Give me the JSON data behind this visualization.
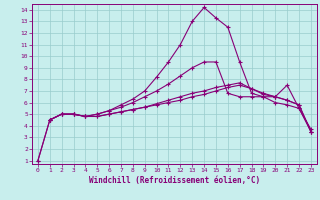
{
  "xlabel": "Windchill (Refroidissement éolien,°C)",
  "xlim": [
    -0.5,
    23.5
  ],
  "ylim": [
    0.7,
    14.5
  ],
  "xticks": [
    0,
    1,
    2,
    3,
    4,
    5,
    6,
    7,
    8,
    9,
    10,
    11,
    12,
    13,
    14,
    15,
    16,
    17,
    18,
    19,
    20,
    21,
    22,
    23
  ],
  "yticks": [
    1,
    2,
    3,
    4,
    5,
    6,
    7,
    8,
    9,
    10,
    11,
    12,
    13,
    14
  ],
  "bg_color": "#c8eeed",
  "line_color": "#880077",
  "grid_color": "#99cccc",
  "line1_x": [
    0,
    1,
    2,
    3,
    4,
    5,
    6,
    7,
    8,
    9,
    10,
    11,
    12,
    13,
    14,
    15,
    16,
    17,
    18,
    19,
    20,
    21,
    22,
    23
  ],
  "line1_y": [
    1.0,
    4.5,
    5.0,
    5.0,
    4.8,
    5.0,
    5.3,
    5.6,
    6.0,
    6.5,
    7.0,
    7.6,
    8.3,
    9.0,
    9.5,
    9.5,
    6.8,
    6.5,
    6.5,
    6.5,
    6.0,
    5.8,
    5.5,
    3.5
  ],
  "line2_x": [
    0,
    1,
    2,
    3,
    4,
    5,
    6,
    7,
    8,
    9,
    10,
    11,
    12,
    13,
    14,
    15,
    16,
    17,
    18,
    19,
    20,
    21,
    22,
    23
  ],
  "line2_y": [
    1.0,
    4.5,
    5.0,
    5.0,
    4.8,
    5.0,
    5.3,
    5.8,
    6.3,
    7.0,
    8.2,
    9.5,
    11.0,
    13.0,
    14.2,
    13.3,
    12.5,
    9.5,
    6.8,
    6.5,
    6.5,
    7.5,
    5.5,
    3.7
  ],
  "line3_x": [
    1,
    2,
    3,
    4,
    5,
    6,
    7,
    8,
    9,
    10,
    11,
    12,
    13,
    14,
    15,
    16,
    17,
    18,
    19,
    20,
    21,
    22,
    23
  ],
  "line3_y": [
    4.5,
    5.0,
    5.0,
    4.8,
    4.8,
    5.0,
    5.2,
    5.4,
    5.6,
    5.8,
    6.0,
    6.2,
    6.5,
    6.7,
    7.0,
    7.3,
    7.5,
    7.2,
    6.8,
    6.5,
    6.2,
    5.8,
    3.5
  ],
  "line4_x": [
    1,
    2,
    3,
    4,
    5,
    6,
    7,
    8,
    9,
    10,
    11,
    12,
    13,
    14,
    15,
    16,
    17,
    18,
    19,
    20,
    21,
    22,
    23
  ],
  "line4_y": [
    4.5,
    5.0,
    5.0,
    4.8,
    4.8,
    5.0,
    5.2,
    5.4,
    5.6,
    5.9,
    6.2,
    6.5,
    6.8,
    7.0,
    7.3,
    7.5,
    7.7,
    7.2,
    6.7,
    6.5,
    6.2,
    5.8,
    3.5
  ]
}
